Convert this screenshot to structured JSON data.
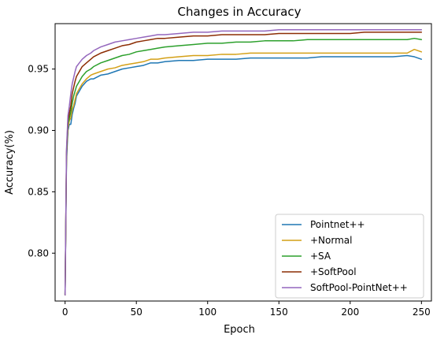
{
  "chart_data": {
    "type": "line",
    "title": "Changes in Accuracy",
    "xlabel": "Epoch",
    "ylabel": "Accuracy(%)",
    "xlim": [
      -7,
      257
    ],
    "ylim": [
      0.761,
      0.987
    ],
    "xticks": [
      0,
      50,
      100,
      150,
      200,
      250
    ],
    "yticks": [
      0.8,
      0.85,
      0.9,
      0.95
    ],
    "xtick_labels": [
      "0",
      "50",
      "100",
      "150",
      "200",
      "250"
    ],
    "ytick_labels": [
      "0.80",
      "0.85",
      "0.90",
      "0.95"
    ],
    "grid": false,
    "legend": "lower-right",
    "series": [
      {
        "name": "Pointnet++",
        "color": "#1f77b4",
        "x": [
          0,
          1,
          2,
          3,
          4,
          5,
          6,
          7,
          8,
          10,
          12,
          15,
          18,
          20,
          25,
          30,
          35,
          40,
          45,
          50,
          55,
          60,
          65,
          70,
          80,
          90,
          100,
          110,
          120,
          130,
          140,
          150,
          160,
          170,
          180,
          190,
          200,
          210,
          220,
          230,
          240,
          245,
          250
        ],
        "y": [
          0.766,
          0.875,
          0.9,
          0.905,
          0.905,
          0.913,
          0.918,
          0.922,
          0.928,
          0.932,
          0.936,
          0.94,
          0.942,
          0.942,
          0.945,
          0.946,
          0.948,
          0.95,
          0.951,
          0.952,
          0.953,
          0.955,
          0.955,
          0.956,
          0.957,
          0.957,
          0.958,
          0.958,
          0.958,
          0.959,
          0.959,
          0.959,
          0.959,
          0.959,
          0.96,
          0.96,
          0.96,
          0.96,
          0.96,
          0.96,
          0.961,
          0.96,
          0.958
        ]
      },
      {
        "name": "+Normal",
        "color": "#d4a017",
        "x": [
          0,
          1,
          2,
          3,
          4,
          5,
          6,
          7,
          8,
          10,
          12,
          15,
          18,
          20,
          25,
          30,
          35,
          40,
          45,
          50,
          55,
          60,
          65,
          70,
          80,
          90,
          100,
          110,
          120,
          130,
          140,
          150,
          160,
          170,
          180,
          190,
          200,
          210,
          220,
          230,
          240,
          245,
          250
        ],
        "y": [
          0.766,
          0.88,
          0.902,
          0.908,
          0.91,
          0.917,
          0.92,
          0.925,
          0.93,
          0.934,
          0.938,
          0.942,
          0.945,
          0.946,
          0.948,
          0.95,
          0.951,
          0.953,
          0.954,
          0.955,
          0.956,
          0.958,
          0.958,
          0.959,
          0.96,
          0.961,
          0.961,
          0.962,
          0.962,
          0.963,
          0.963,
          0.963,
          0.963,
          0.963,
          0.963,
          0.963,
          0.963,
          0.963,
          0.963,
          0.963,
          0.963,
          0.966,
          0.964
        ]
      },
      {
        "name": "+SA",
        "color": "#2ca02c",
        "x": [
          0,
          1,
          2,
          3,
          4,
          5,
          6,
          7,
          8,
          10,
          12,
          15,
          18,
          20,
          25,
          30,
          35,
          40,
          45,
          50,
          55,
          60,
          65,
          70,
          80,
          90,
          100,
          110,
          120,
          130,
          140,
          150,
          160,
          170,
          180,
          190,
          200,
          210,
          220,
          230,
          240,
          245,
          250
        ],
        "y": [
          0.766,
          0.88,
          0.905,
          0.91,
          0.915,
          0.922,
          0.928,
          0.932,
          0.936,
          0.94,
          0.944,
          0.948,
          0.95,
          0.952,
          0.955,
          0.957,
          0.959,
          0.961,
          0.962,
          0.964,
          0.965,
          0.966,
          0.967,
          0.968,
          0.969,
          0.97,
          0.971,
          0.971,
          0.972,
          0.972,
          0.973,
          0.973,
          0.973,
          0.974,
          0.974,
          0.974,
          0.974,
          0.974,
          0.974,
          0.974,
          0.974,
          0.975,
          0.974
        ]
      },
      {
        "name": "+SoftPool",
        "color": "#8c2d04",
        "x": [
          0,
          1,
          2,
          3,
          4,
          5,
          6,
          7,
          8,
          10,
          12,
          15,
          18,
          20,
          25,
          30,
          35,
          40,
          45,
          50,
          55,
          60,
          65,
          70,
          80,
          90,
          100,
          110,
          120,
          130,
          140,
          150,
          160,
          170,
          180,
          190,
          200,
          210,
          220,
          230,
          240,
          245,
          250
        ],
        "y": [
          0.766,
          0.882,
          0.908,
          0.914,
          0.92,
          0.93,
          0.935,
          0.94,
          0.944,
          0.948,
          0.952,
          0.955,
          0.958,
          0.96,
          0.963,
          0.965,
          0.967,
          0.969,
          0.97,
          0.972,
          0.973,
          0.974,
          0.975,
          0.975,
          0.976,
          0.977,
          0.977,
          0.978,
          0.978,
          0.978,
          0.978,
          0.979,
          0.979,
          0.979,
          0.979,
          0.979,
          0.979,
          0.98,
          0.98,
          0.98,
          0.98,
          0.98,
          0.98
        ]
      },
      {
        "name": "SoftPool-PointNet++",
        "color": "#9467bd",
        "x": [
          0,
          1,
          2,
          3,
          4,
          5,
          6,
          7,
          8,
          10,
          12,
          15,
          18,
          20,
          25,
          30,
          35,
          40,
          45,
          50,
          55,
          60,
          65,
          70,
          80,
          90,
          100,
          110,
          120,
          130,
          140,
          150,
          160,
          170,
          180,
          190,
          200,
          210,
          220,
          230,
          240,
          245,
          250
        ],
        "y": [
          0.766,
          0.885,
          0.912,
          0.92,
          0.93,
          0.938,
          0.943,
          0.948,
          0.952,
          0.955,
          0.958,
          0.961,
          0.963,
          0.965,
          0.968,
          0.97,
          0.972,
          0.973,
          0.974,
          0.975,
          0.976,
          0.977,
          0.978,
          0.978,
          0.979,
          0.98,
          0.98,
          0.981,
          0.981,
          0.981,
          0.981,
          0.982,
          0.982,
          0.982,
          0.982,
          0.982,
          0.982,
          0.982,
          0.982,
          0.982,
          0.982,
          0.982,
          0.982
        ]
      }
    ]
  }
}
